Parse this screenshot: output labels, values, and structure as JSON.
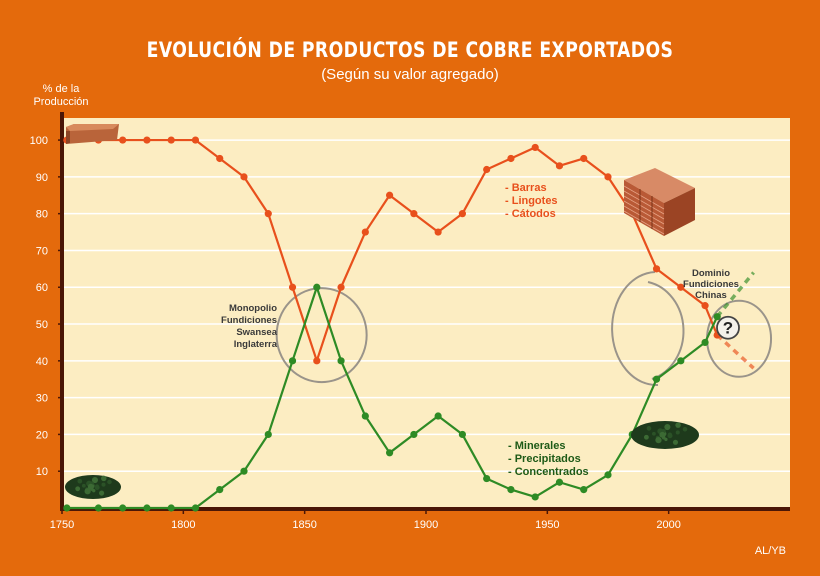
{
  "chart_data": {
    "type": "line",
    "title": "EVOLUCIÓN DE PRODUCTOS DE COBRE EXPORTADOS",
    "subtitle": "(Según su valor agregado)",
    "ylabel": "% de la Producción",
    "xlabel": "",
    "xlim": [
      1750,
      2050
    ],
    "ylim": [
      0,
      106
    ],
    "x_ticks": [
      "1750",
      "1800",
      "1850",
      "1900",
      "1950",
      "2000"
    ],
    "y_ticks": [
      "10",
      "20",
      "30",
      "40",
      "50",
      "60",
      "70",
      "80",
      "90",
      "100"
    ],
    "grid": true,
    "series": [
      {
        "name": "- Barras\n- Lingotes\n- Cátodos",
        "color": "#E8501C",
        "x": [
          1752,
          1765,
          1775,
          1785,
          1795,
          1805,
          1815,
          1825,
          1835,
          1845,
          1855,
          1865,
          1875,
          1885,
          1895,
          1905,
          1915,
          1925,
          1935,
          1945,
          1955,
          1965,
          1975,
          1985,
          1995,
          2005,
          2015,
          2020
        ],
        "values": [
          100,
          100,
          100,
          100,
          100,
          100,
          95,
          90,
          80,
          60,
          40,
          60,
          75,
          85,
          80,
          75,
          80,
          92,
          95,
          98,
          93,
          95,
          90,
          80,
          65,
          60,
          55,
          47
        ],
        "projection": {
          "x": [
            2020,
            2035
          ],
          "values": [
            47,
            38
          ]
        }
      },
      {
        "name": "- Minerales\n- Precipitados\n- Concentrados",
        "color": "#2E8B25",
        "x": [
          1752,
          1765,
          1775,
          1785,
          1795,
          1805,
          1815,
          1825,
          1835,
          1845,
          1855,
          1865,
          1875,
          1885,
          1895,
          1905,
          1915,
          1925,
          1935,
          1945,
          1955,
          1965,
          1975,
          1985,
          1995,
          2005,
          2015,
          2020
        ],
        "values": [
          0,
          0,
          0,
          0,
          0,
          0,
          5,
          10,
          20,
          40,
          60,
          40,
          25,
          15,
          20,
          25,
          20,
          8,
          5,
          3,
          7,
          5,
          9,
          20,
          35,
          40,
          45,
          52
        ],
        "projection": {
          "x": [
            2020,
            2035
          ],
          "values": [
            52,
            64
          ]
        }
      }
    ],
    "annotations": [
      "Monopolio\nFundiciones\nSwansea\nInglaterra",
      "Dominio\nFundiciones\nChinas",
      "?"
    ]
  },
  "credit": "AL/YB",
  "colors": {
    "background": "#E46A0C",
    "plot_area": "#FCEDC2",
    "axis": "#4A1606",
    "text_dark": "#3A3A3A",
    "text_white": "#FFFFFF"
  },
  "icons": [
    "copper-slab-icon",
    "copper-cathode-stack-icon",
    "copper-ore-pile-icon",
    "question-mark-icon"
  ]
}
